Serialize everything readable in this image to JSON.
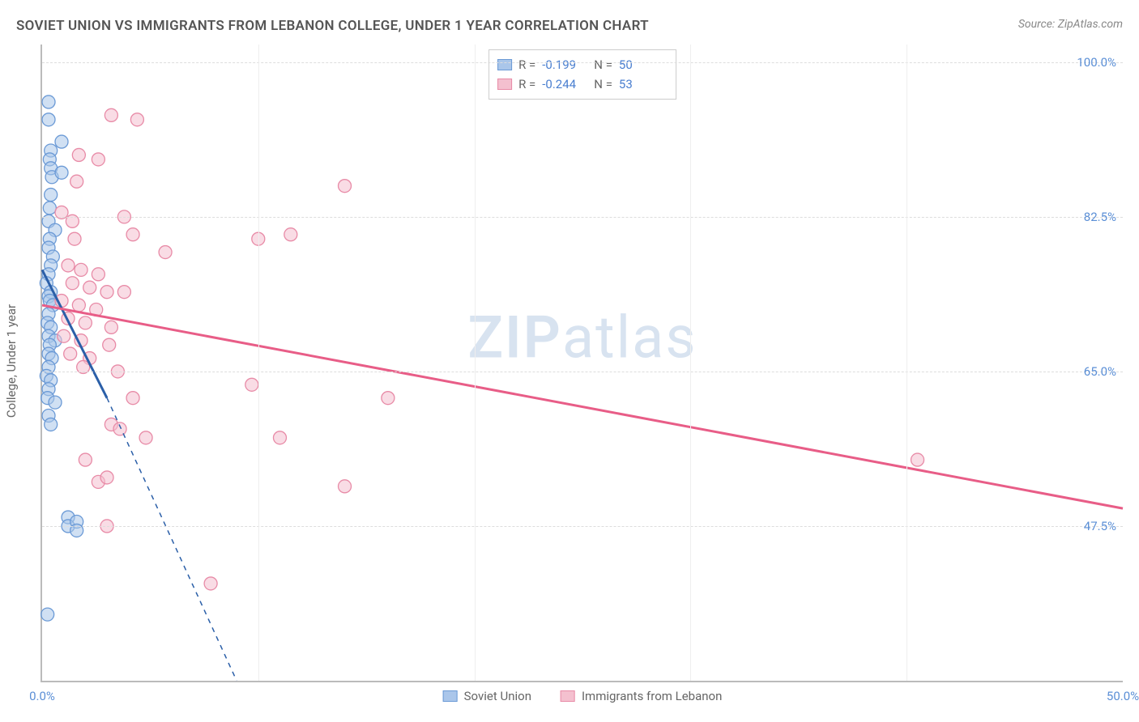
{
  "title": "SOVIET UNION VS IMMIGRANTS FROM LEBANON COLLEGE, UNDER 1 YEAR CORRELATION CHART",
  "source": "Source: ZipAtlas.com",
  "watermark": "ZIPatlas",
  "y_axis_title": "College, Under 1 year",
  "xlim": [
    0,
    50
  ],
  "ylim": [
    30,
    102
  ],
  "x_ticks": [
    {
      "v": 0,
      "label": "0.0%"
    },
    {
      "v": 50,
      "label": "50.0%"
    }
  ],
  "x_grid": [
    10,
    20,
    30,
    40
  ],
  "y_ticks": [
    {
      "v": 47.5,
      "label": "47.5%"
    },
    {
      "v": 65.0,
      "label": "65.0%"
    },
    {
      "v": 82.5,
      "label": "82.5%"
    },
    {
      "v": 100.0,
      "label": "100.0%"
    }
  ],
  "colors": {
    "blue_fill": "#aac6ea",
    "blue_stroke": "#6b9ad6",
    "blue_line": "#2b5fa8",
    "pink_fill": "#f4c0cf",
    "pink_stroke": "#e88ba7",
    "pink_line": "#e85d87",
    "text_blue": "#4a7fd0",
    "grid": "#dddddd",
    "axis": "#bbbbbb"
  },
  "marker_radius": 8,
  "stat_legend": [
    {
      "swatch": "blue",
      "R": "-0.199",
      "N": "50"
    },
    {
      "swatch": "pink",
      "R": "-0.244",
      "N": "53"
    }
  ],
  "series_legend": [
    {
      "swatch": "blue",
      "label": "Soviet Union"
    },
    {
      "swatch": "pink",
      "label": "Immigrants from Lebanon"
    }
  ],
  "trend_lines": {
    "blue_solid": {
      "x1": 0.0,
      "y1": 76.5,
      "x2": 3.0,
      "y2": 62.0
    },
    "blue_dashed": {
      "x1": 3.0,
      "y1": 62.0,
      "x2": 9.0,
      "y2": 30.0
    },
    "pink": {
      "x1": 0.0,
      "y1": 72.5,
      "x2": 50.0,
      "y2": 49.5
    }
  },
  "points_blue": [
    {
      "x": 0.3,
      "y": 95.5
    },
    {
      "x": 0.3,
      "y": 93.5
    },
    {
      "x": 0.9,
      "y": 91.0
    },
    {
      "x": 0.4,
      "y": 90.0
    },
    {
      "x": 0.35,
      "y": 89.0
    },
    {
      "x": 0.4,
      "y": 88.0
    },
    {
      "x": 0.45,
      "y": 87.0
    },
    {
      "x": 0.9,
      "y": 87.5
    },
    {
      "x": 0.4,
      "y": 85.0
    },
    {
      "x": 0.35,
      "y": 83.5
    },
    {
      "x": 0.3,
      "y": 82.0
    },
    {
      "x": 0.6,
      "y": 81.0
    },
    {
      "x": 0.35,
      "y": 80.0
    },
    {
      "x": 0.3,
      "y": 79.0
    },
    {
      "x": 0.5,
      "y": 78.0
    },
    {
      "x": 0.4,
      "y": 77.0
    },
    {
      "x": 0.3,
      "y": 76.0
    },
    {
      "x": 0.2,
      "y": 75.0
    },
    {
      "x": 0.4,
      "y": 74.0
    },
    {
      "x": 0.3,
      "y": 73.5
    },
    {
      "x": 0.35,
      "y": 73.0
    },
    {
      "x": 0.5,
      "y": 72.5
    },
    {
      "x": 0.3,
      "y": 71.5
    },
    {
      "x": 0.25,
      "y": 70.5
    },
    {
      "x": 0.4,
      "y": 70.0
    },
    {
      "x": 0.3,
      "y": 69.0
    },
    {
      "x": 0.6,
      "y": 68.5
    },
    {
      "x": 0.35,
      "y": 68.0
    },
    {
      "x": 0.3,
      "y": 67.0
    },
    {
      "x": 0.45,
      "y": 66.5
    },
    {
      "x": 0.3,
      "y": 65.5
    },
    {
      "x": 0.2,
      "y": 64.5
    },
    {
      "x": 0.4,
      "y": 64.0
    },
    {
      "x": 0.3,
      "y": 63.0
    },
    {
      "x": 0.25,
      "y": 62.0
    },
    {
      "x": 0.6,
      "y": 61.5
    },
    {
      "x": 0.3,
      "y": 60.0
    },
    {
      "x": 0.4,
      "y": 59.0
    },
    {
      "x": 1.2,
      "y": 48.5
    },
    {
      "x": 1.2,
      "y": 47.5
    },
    {
      "x": 1.6,
      "y": 48.0
    },
    {
      "x": 1.6,
      "y": 47.0
    },
    {
      "x": 0.25,
      "y": 37.5
    }
  ],
  "points_pink": [
    {
      "x": 3.2,
      "y": 94.0
    },
    {
      "x": 4.4,
      "y": 93.5
    },
    {
      "x": 1.7,
      "y": 89.5
    },
    {
      "x": 2.6,
      "y": 89.0
    },
    {
      "x": 1.6,
      "y": 86.5
    },
    {
      "x": 14.0,
      "y": 86.0
    },
    {
      "x": 0.9,
      "y": 83.0
    },
    {
      "x": 1.4,
      "y": 82.0
    },
    {
      "x": 3.8,
      "y": 82.5
    },
    {
      "x": 1.5,
      "y": 80.0
    },
    {
      "x": 4.2,
      "y": 80.5
    },
    {
      "x": 10.0,
      "y": 80.0
    },
    {
      "x": 11.5,
      "y": 80.5
    },
    {
      "x": 5.7,
      "y": 78.5
    },
    {
      "x": 1.2,
      "y": 77.0
    },
    {
      "x": 1.8,
      "y": 76.5
    },
    {
      "x": 2.6,
      "y": 76.0
    },
    {
      "x": 1.4,
      "y": 75.0
    },
    {
      "x": 2.2,
      "y": 74.5
    },
    {
      "x": 3.0,
      "y": 74.0
    },
    {
      "x": 3.8,
      "y": 74.0
    },
    {
      "x": 0.9,
      "y": 73.0
    },
    {
      "x": 1.7,
      "y": 72.5
    },
    {
      "x": 2.5,
      "y": 72.0
    },
    {
      "x": 1.2,
      "y": 71.0
    },
    {
      "x": 2.0,
      "y": 70.5
    },
    {
      "x": 3.2,
      "y": 70.0
    },
    {
      "x": 1.0,
      "y": 69.0
    },
    {
      "x": 1.8,
      "y": 68.5
    },
    {
      "x": 3.1,
      "y": 68.0
    },
    {
      "x": 1.3,
      "y": 67.0
    },
    {
      "x": 2.2,
      "y": 66.5
    },
    {
      "x": 1.9,
      "y": 65.5
    },
    {
      "x": 3.5,
      "y": 65.0
    },
    {
      "x": 9.7,
      "y": 63.5
    },
    {
      "x": 4.2,
      "y": 62.0
    },
    {
      "x": 16.0,
      "y": 62.0
    },
    {
      "x": 3.2,
      "y": 59.0
    },
    {
      "x": 3.6,
      "y": 58.5
    },
    {
      "x": 4.8,
      "y": 57.5
    },
    {
      "x": 11.0,
      "y": 57.5
    },
    {
      "x": 2.0,
      "y": 55.0
    },
    {
      "x": 2.6,
      "y": 52.5
    },
    {
      "x": 3.0,
      "y": 53.0
    },
    {
      "x": 14.0,
      "y": 52.0
    },
    {
      "x": 40.5,
      "y": 55.0
    },
    {
      "x": 3.0,
      "y": 47.5
    },
    {
      "x": 7.8,
      "y": 41.0
    }
  ]
}
